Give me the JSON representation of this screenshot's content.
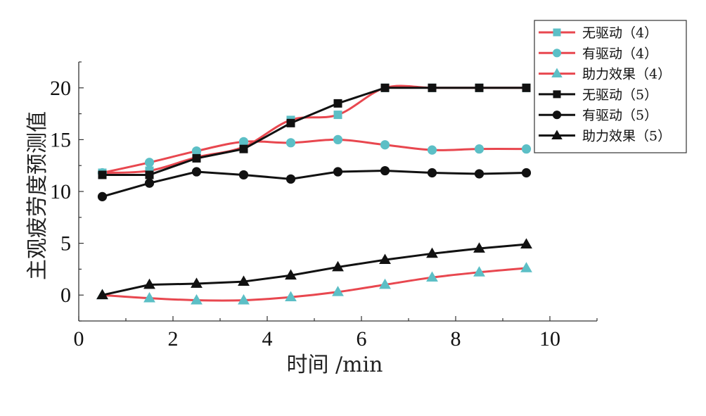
{
  "chart_data": {
    "type": "line",
    "xlabel": "时间 /min",
    "ylabel": "主观疲劳度预测值",
    "xlim": [
      0,
      11
    ],
    "ylim": [
      -2.5,
      22.5
    ],
    "xticks": [
      0,
      2,
      4,
      6,
      8,
      10
    ],
    "yticks": [
      0,
      5,
      10,
      15,
      20
    ],
    "x": [
      0.5,
      1.5,
      2.5,
      3.5,
      4.5,
      5.5,
      6.5,
      7.5,
      8.5,
      9.5
    ],
    "legend_position": "top-right",
    "series": [
      {
        "name": "无驱动（4）",
        "line_color": "#e8474f",
        "marker_color": "#5cbfc6",
        "marker": "square",
        "smooth": true,
        "values": [
          11.8,
          12.0,
          13.3,
          14.3,
          16.9,
          17.4,
          20.0,
          20.0,
          20.0,
          20.0
        ]
      },
      {
        "name": "有驱动（4）",
        "line_color": "#e8474f",
        "marker_color": "#5cbfc6",
        "marker": "circle",
        "smooth": true,
        "values": [
          11.8,
          12.8,
          13.9,
          14.8,
          14.7,
          15.0,
          14.5,
          14.0,
          14.1,
          14.1
        ]
      },
      {
        "name": "助力效果（4）",
        "line_color": "#e8474f",
        "marker_color": "#5cbfc6",
        "marker": "triangle",
        "smooth": true,
        "values": [
          0.0,
          -0.3,
          -0.5,
          -0.5,
          -0.2,
          0.3,
          1.0,
          1.7,
          2.2,
          2.6
        ]
      },
      {
        "name": "无驱动（5）",
        "line_color": "#111111",
        "marker_color": "#111111",
        "marker": "square",
        "smooth": false,
        "values": [
          11.6,
          11.6,
          13.2,
          14.1,
          16.6,
          18.5,
          20.0,
          20.0,
          20.0,
          20.0
        ]
      },
      {
        "name": "有驱动（5）",
        "line_color": "#111111",
        "marker_color": "#111111",
        "marker": "circle",
        "smooth": false,
        "values": [
          9.5,
          10.8,
          11.9,
          11.6,
          11.2,
          11.9,
          12.0,
          11.8,
          11.7,
          11.8
        ]
      },
      {
        "name": "助力效果（5）",
        "line_color": "#111111",
        "marker_color": "#111111",
        "marker": "triangle",
        "smooth": false,
        "values": [
          0.0,
          1.0,
          1.1,
          1.3,
          1.9,
          2.7,
          3.4,
          4.0,
          4.5,
          4.9
        ]
      }
    ]
  }
}
